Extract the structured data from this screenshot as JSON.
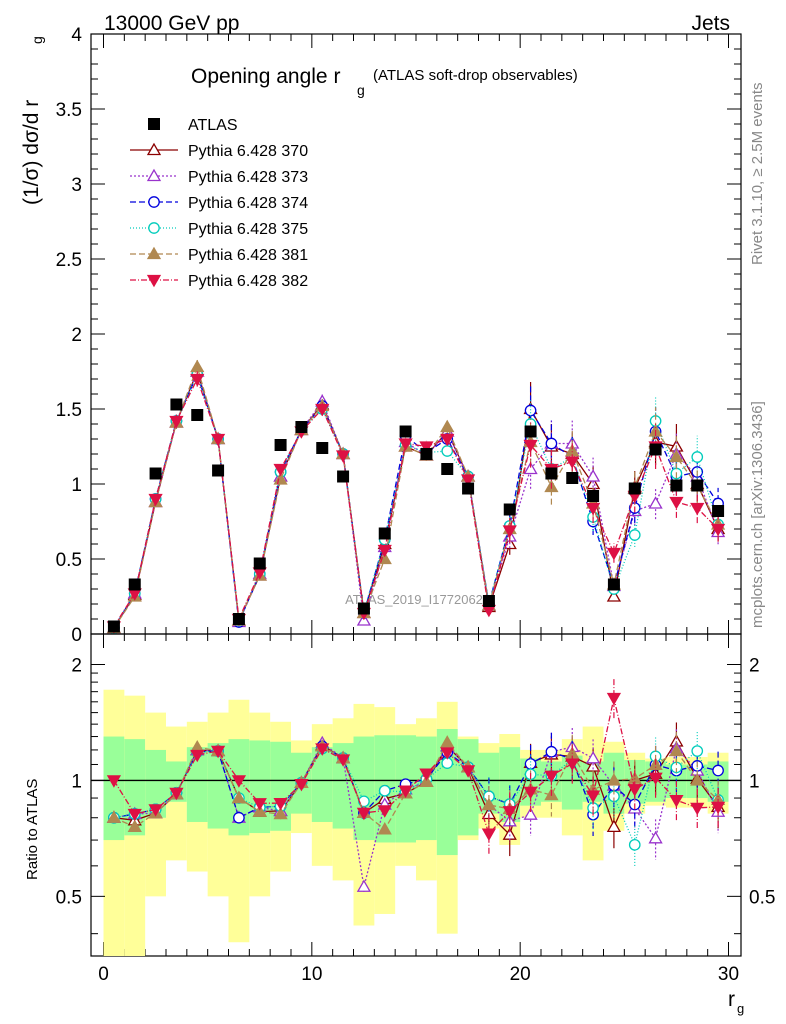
{
  "header": {
    "energy": "13000 GeV pp",
    "category": "Jets"
  },
  "plot": {
    "title_main": "Opening angle r",
    "title_sub": "g",
    "title_paren": "(ATLAS soft-drop observables)",
    "ylabel_main": "(1/σ) dσ/d r",
    "ylabel_sub": "g",
    "watermark": "ATLAS_2019_I1772062",
    "side_rivet": "Rivet 3.1.10, ≥ 2.5M events",
    "side_mcplots": "mcplots.cern.ch [arXiv:1306.3436]"
  },
  "ratio": {
    "ylabel": "Ratio to ATLAS"
  },
  "xaxis": {
    "label_main": "r",
    "label_sub": "g",
    "ticks": [
      "0",
      "10",
      "20",
      "30"
    ]
  },
  "yaxis_top": {
    "ticks": [
      "0",
      "0.5",
      "1",
      "1.5",
      "2",
      "2.5",
      "3",
      "3.5",
      "4"
    ]
  },
  "yaxis_ratio": {
    "ticks": [
      "0.5",
      "1",
      "2"
    ]
  },
  "chart_data": {
    "type": "scatter",
    "x": [
      0.5,
      1.5,
      2.5,
      3.5,
      4.5,
      5.5,
      6.5,
      7.5,
      8.5,
      9.5,
      10.5,
      11.5,
      12.5,
      13.5,
      14.5,
      15.5,
      16.5,
      17.5,
      18.5,
      19.5,
      20.5,
      21.5,
      22.5,
      23.5,
      24.5,
      25.5,
      26.5,
      27.5,
      28.5,
      29.5
    ],
    "xlim": [
      -0.6,
      30.6
    ],
    "ylim": [
      0,
      4
    ],
    "ratio_ylim": [
      0.35,
      2.4
    ],
    "ratio_log": true,
    "data": {
      "name": "ATLAS",
      "color": "#000000",
      "values": [
        0.05,
        0.33,
        1.07,
        1.53,
        1.46,
        1.09,
        0.1,
        0.47,
        1.26,
        1.38,
        1.24,
        1.05,
        0.17,
        0.67,
        1.35,
        1.2,
        1.1,
        0.97,
        0.22,
        0.83,
        1.35,
        1.07,
        1.04,
        0.92,
        0.33,
        0.97,
        1.23,
        0.99,
        0.99,
        0.82
      ]
    },
    "series": [
      {
        "name": "Pythia 6.428 370",
        "color": "#8b0000",
        "dash": "",
        "marker": "tri-open",
        "values": [
          0.04,
          0.26,
          0.88,
          1.41,
          1.75,
          1.3,
          0.09,
          0.39,
          1.05,
          1.36,
          1.53,
          1.2,
          0.14,
          0.6,
          1.25,
          1.19,
          1.35,
          1.05,
          0.18,
          0.6,
          1.5,
          1.25,
          1.2,
          1.0,
          0.25,
          0.97,
          1.28,
          1.25,
          1.0,
          0.7
        ]
      },
      {
        "name": "Pythia 6.428 373",
        "color": "#9933cc",
        "dash": "2,2",
        "marker": "tri-open",
        "values": [
          0.04,
          0.27,
          0.88,
          1.41,
          1.75,
          1.3,
          0.08,
          0.4,
          1.05,
          1.36,
          1.55,
          1.2,
          0.09,
          0.58,
          1.28,
          1.19,
          1.35,
          1.05,
          0.19,
          0.65,
          1.1,
          1.27,
          1.27,
          1.05,
          0.32,
          0.82,
          0.87,
          1.2,
          1.05,
          0.68
        ]
      },
      {
        "name": "Pythia 6.428 374",
        "color": "#0000dd",
        "dash": "6,3",
        "marker": "circ-open",
        "values": [
          0.04,
          0.27,
          0.9,
          1.42,
          1.73,
          1.3,
          0.08,
          0.4,
          1.08,
          1.36,
          1.52,
          1.2,
          0.14,
          0.63,
          1.32,
          1.21,
          1.3,
          1.05,
          0.2,
          0.72,
          1.49,
          1.27,
          1.18,
          0.75,
          0.32,
          0.84,
          1.35,
          1.05,
          1.08,
          0.87
        ]
      },
      {
        "name": "Pythia 6.428 375",
        "color": "#00ccbb",
        "dash": "1,2",
        "marker": "circ-open",
        "values": [
          0.04,
          0.27,
          0.9,
          1.42,
          1.73,
          1.3,
          0.09,
          0.4,
          1.08,
          1.36,
          1.5,
          1.2,
          0.15,
          0.63,
          1.26,
          1.21,
          1.22,
          1.05,
          0.2,
          0.72,
          1.4,
          1.1,
          1.18,
          0.78,
          0.3,
          0.66,
          1.42,
          1.07,
          1.18,
          0.73
        ]
      },
      {
        "name": "Pythia 6.428 381",
        "color": "#b08850",
        "dash": "6,3",
        "marker": "tri-fill",
        "values": [
          0.04,
          0.25,
          0.88,
          1.41,
          1.78,
          1.3,
          0.09,
          0.39,
          1.03,
          1.36,
          1.52,
          1.2,
          0.14,
          0.5,
          1.25,
          1.19,
          1.38,
          1.05,
          0.19,
          0.7,
          1.28,
          0.98,
          1.22,
          0.87,
          0.33,
          0.98,
          1.35,
          1.18,
          0.99,
          0.73
        ]
      },
      {
        "name": "Pythia 6.428 382",
        "color": "#dd1144",
        "dash": "6,2,1,2",
        "marker": "tri-down",
        "values": [
          0.05,
          0.27,
          0.9,
          1.42,
          1.7,
          1.3,
          0.1,
          0.41,
          1.1,
          1.35,
          1.5,
          1.19,
          0.14,
          0.56,
          1.27,
          1.25,
          1.3,
          1.03,
          0.16,
          0.69,
          1.26,
          1.1,
          1.15,
          0.84,
          0.54,
          0.92,
          1.25,
          0.88,
          0.84,
          0.7
        ]
      }
    ],
    "band_inner": [
      0.3,
      0.28,
      0.2,
      0.12,
      0.22,
      0.25,
      0.28,
      0.27,
      0.26,
      0.18,
      0.22,
      0.25,
      0.3,
      0.31,
      0.31,
      0.3,
      0.36,
      0.28,
      0.18,
      0.22,
      0.14,
      0.12,
      0.16,
      0.12,
      0.18,
      0.13,
      0.12,
      0.1,
      0.1,
      0.12
    ],
    "band_outer": [
      0.72,
      0.66,
      0.5,
      0.38,
      0.42,
      0.5,
      0.62,
      0.5,
      0.42,
      0.27,
      0.4,
      0.45,
      0.58,
      0.55,
      0.4,
      0.45,
      0.6,
      0.3,
      0.25,
      0.32,
      0.2,
      0.2,
      0.28,
      0.38,
      0.26,
      0.18,
      0.14,
      0.15,
      0.15,
      0.18
    ]
  }
}
